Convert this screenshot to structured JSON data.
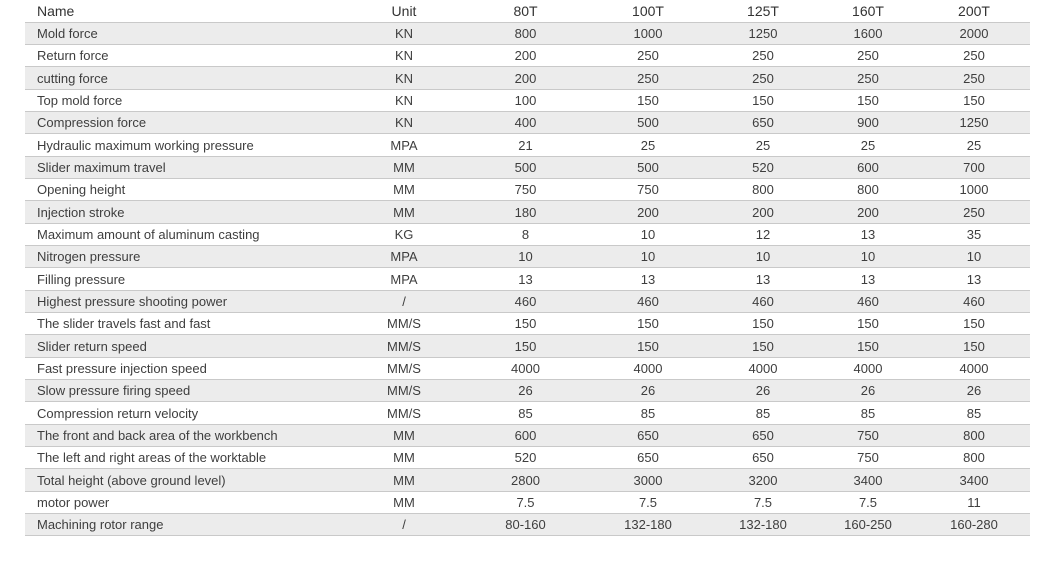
{
  "table": {
    "headers": [
      "Name",
      "Unit",
      "80T",
      "100T",
      "125T",
      "160T",
      "200T"
    ],
    "rows": [
      [
        "Mold force",
        "KN",
        "800",
        "1000",
        "1250",
        "1600",
        "2000"
      ],
      [
        "Return force",
        "KN",
        "200",
        "250",
        "250",
        "250",
        "250"
      ],
      [
        "cutting force",
        "KN",
        "200",
        "250",
        "250",
        "250",
        "250"
      ],
      [
        "Top mold force",
        "KN",
        "100",
        "150",
        "150",
        "150",
        "150"
      ],
      [
        "Compression force",
        "KN",
        "400",
        "500",
        "650",
        "900",
        "1250"
      ],
      [
        "Hydraulic maximum working pressure",
        "MPA",
        "21",
        "25",
        "25",
        "25",
        "25"
      ],
      [
        "Slider maximum travel",
        "MM",
        "500",
        "500",
        "520",
        "600",
        "700"
      ],
      [
        "Opening height",
        "MM",
        "750",
        "750",
        "800",
        "800",
        "1000"
      ],
      [
        "Injection stroke",
        "MM",
        "180",
        "200",
        "200",
        "200",
        "250"
      ],
      [
        "Maximum amount of aluminum casting",
        "KG",
        "8",
        "10",
        "12",
        "13",
        "35"
      ],
      [
        "Nitrogen pressure",
        "MPA",
        "10",
        "10",
        "10",
        "10",
        "10"
      ],
      [
        "Filling pressure",
        "MPA",
        "13",
        "13",
        "13",
        "13",
        "13"
      ],
      [
        "Highest pressure shooting power",
        "/",
        "460",
        "460",
        "460",
        "460",
        "460"
      ],
      [
        "The slider travels fast and fast",
        "MM/S",
        "150",
        "150",
        "150",
        "150",
        "150"
      ],
      [
        "Slider return speed",
        "MM/S",
        "150",
        "150",
        "150",
        "150",
        "150"
      ],
      [
        "Fast pressure injection speed",
        "MM/S",
        "4000",
        "4000",
        "4000",
        "4000",
        "4000"
      ],
      [
        "Slow pressure firing speed",
        "MM/S",
        "26",
        "26",
        "26",
        "26",
        "26"
      ],
      [
        "Compression return velocity",
        "MM/S",
        "85",
        "85",
        "85",
        "85",
        "85"
      ],
      [
        "The front and back area of the workbench",
        "MM",
        "600",
        "650",
        "650",
        "750",
        "800"
      ],
      [
        "The left and right areas of the worktable",
        "MM",
        "520",
        "650",
        "650",
        "750",
        "800"
      ],
      [
        "Total height (above ground level)",
        "MM",
        "2800",
        "3000",
        "3200",
        "3400",
        "3400"
      ],
      [
        "motor power",
        "MM",
        "7.5",
        "7.5",
        "7.5",
        "7.5",
        "11"
      ],
      [
        "Machining rotor range",
        "/",
        "80-160",
        "132-180",
        "132-180",
        "160-250",
        "160-280"
      ]
    ]
  },
  "colors": {
    "page_background": "#ffffff",
    "row_alt_background": "#ececec",
    "row_border": "#c9c9c9",
    "header_text": "#333333",
    "body_text": "#3e3e3e"
  }
}
